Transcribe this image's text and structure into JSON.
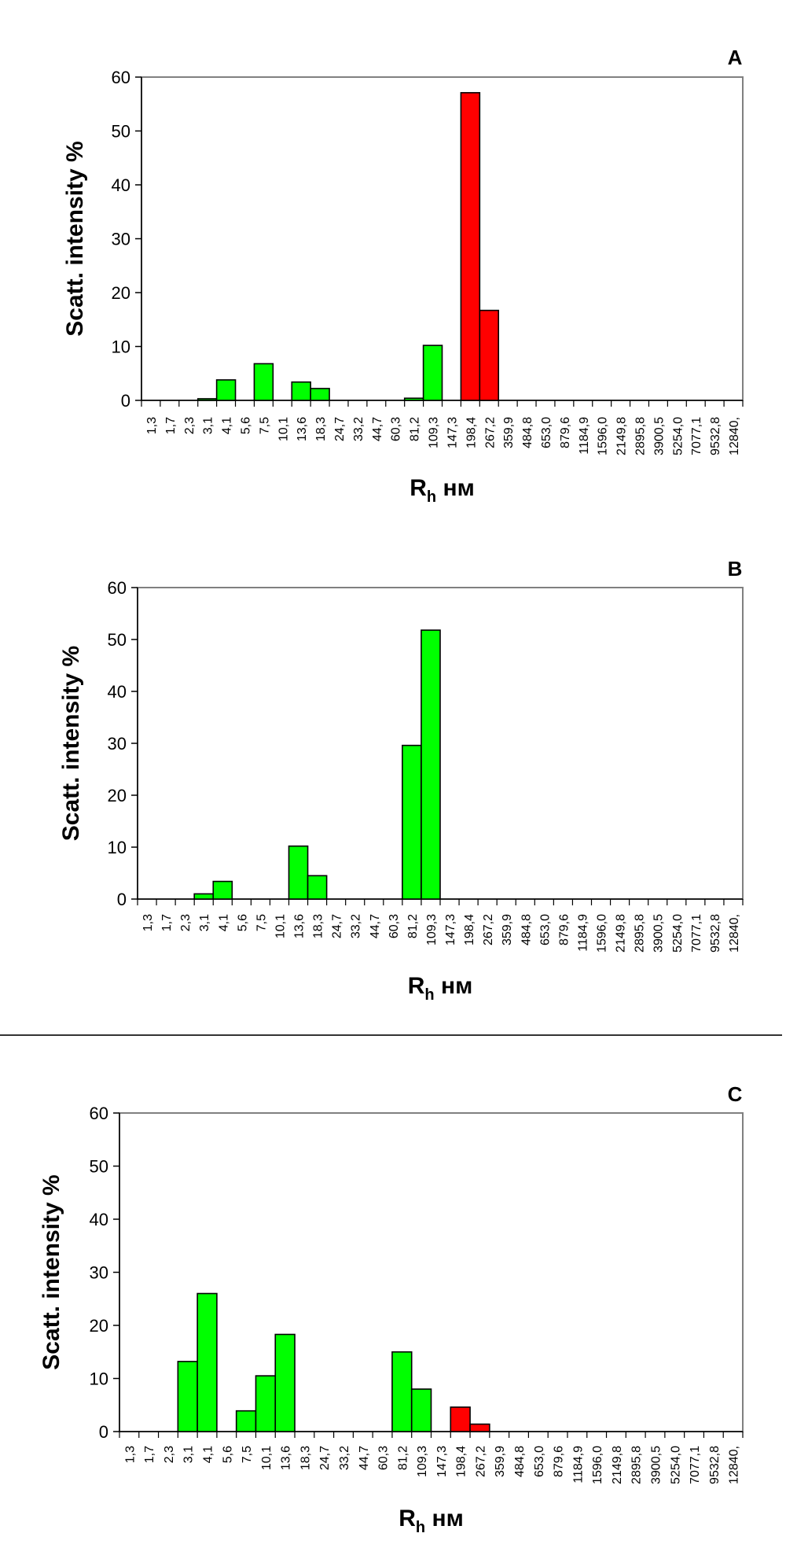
{
  "x_categories": [
    "1,3",
    "1,7",
    "2,3",
    "3,1",
    "4,1",
    "5,6",
    "7,5",
    "10,1",
    "13,6",
    "18,3",
    "24,7",
    "33,2",
    "44,7",
    "60,3",
    "81,2",
    "109,3",
    "147,3",
    "198,4",
    "267,2",
    "359,9",
    "484,8",
    "653,0",
    "879,6",
    "1184,9",
    "1596,0",
    "2149,8",
    "2895,8",
    "3900,5",
    "5254,0",
    "7077,1",
    "9532,8",
    "12840,"
  ],
  "colors": {
    "green": "#00ff00",
    "red": "#ff0000",
    "frame": "#808080",
    "bar_outline": "#000000"
  },
  "chart_data": [
    {
      "type": "bar",
      "panel_label": "A",
      "ylabel": "Scatt. intensity %",
      "xlabel": "R",
      "xlabel_subscript": "h",
      "xlabel_unit": "нм",
      "ylim": [
        0,
        60
      ],
      "yticks": [
        "0",
        "10",
        "20",
        "30",
        "40",
        "50",
        "60"
      ],
      "values": [
        0,
        0,
        0,
        0.3,
        3.8,
        0,
        6.8,
        0,
        3.4,
        2.2,
        0,
        0,
        0,
        0,
        0.4,
        10.2,
        0,
        57.1,
        16.7,
        0,
        0,
        0,
        0,
        0,
        0,
        0,
        0,
        0,
        0,
        0,
        0,
        0
      ],
      "bar_colors": [
        "green",
        "green",
        "green",
        "green",
        "green",
        "green",
        "green",
        "green",
        "green",
        "green",
        "green",
        "green",
        "green",
        "green",
        "green",
        "green",
        "green",
        "red",
        "red",
        "green",
        "green",
        "green",
        "green",
        "green",
        "green",
        "green",
        "green",
        "green",
        "green",
        "green",
        "green",
        "green"
      ]
    },
    {
      "type": "bar",
      "panel_label": "B",
      "ylabel": "Scatt. intensity %",
      "xlabel": "R",
      "xlabel_subscript": "h",
      "xlabel_unit": "нм",
      "ylim": [
        0,
        60
      ],
      "yticks": [
        "0",
        "10",
        "20",
        "30",
        "40",
        "50",
        "60"
      ],
      "values": [
        0,
        0,
        0,
        1.0,
        3.4,
        0,
        0,
        0,
        10.2,
        4.5,
        0,
        0,
        0,
        0,
        29.6,
        51.8,
        0,
        0,
        0,
        0,
        0,
        0,
        0,
        0,
        0,
        0,
        0,
        0,
        0,
        0,
        0,
        0
      ],
      "bar_colors": [
        "green",
        "green",
        "green",
        "green",
        "green",
        "green",
        "green",
        "green",
        "green",
        "green",
        "green",
        "green",
        "green",
        "green",
        "green",
        "green",
        "green",
        "green",
        "green",
        "green",
        "green",
        "green",
        "green",
        "green",
        "green",
        "green",
        "green",
        "green",
        "green",
        "green",
        "green",
        "green"
      ]
    },
    {
      "type": "bar",
      "panel_label": "C",
      "ylabel": "Scatt. intensity %",
      "xlabel": "R",
      "xlabel_subscript": "h",
      "xlabel_unit": "нм",
      "ylim": [
        0,
        60
      ],
      "yticks": [
        "0",
        "10",
        "20",
        "30",
        "40",
        "50",
        "60"
      ],
      "values": [
        0,
        0,
        0,
        13.2,
        26.0,
        0,
        3.9,
        10.5,
        18.3,
        0,
        0,
        0,
        0,
        0,
        15.0,
        8.0,
        0,
        4.6,
        1.4,
        0,
        0,
        0,
        0,
        0,
        0,
        0,
        0,
        0,
        0,
        0,
        0,
        0
      ],
      "bar_colors": [
        "green",
        "green",
        "green",
        "green",
        "green",
        "green",
        "green",
        "green",
        "green",
        "green",
        "green",
        "green",
        "green",
        "green",
        "green",
        "green",
        "green",
        "red",
        "red",
        "green",
        "green",
        "green",
        "green",
        "green",
        "green",
        "green",
        "green",
        "green",
        "green",
        "green",
        "green",
        "green"
      ]
    }
  ]
}
